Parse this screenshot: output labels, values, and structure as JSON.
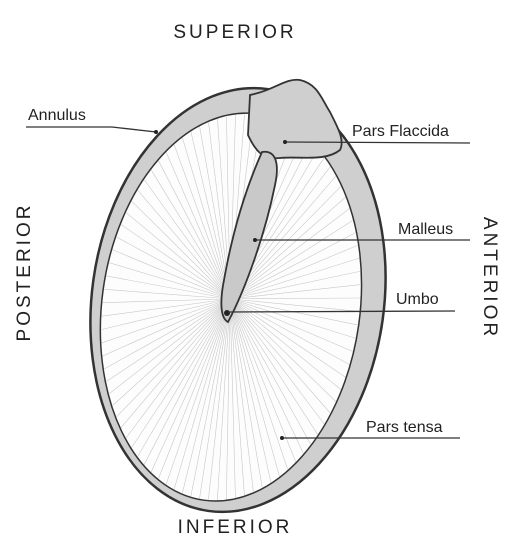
{
  "directions": {
    "superior": "SUPERIOR",
    "inferior": "INFERIOR",
    "posterior": "POSTERIOR",
    "anterior": "ANTERIOR"
  },
  "labels": {
    "annulus": "Annulus",
    "pars_flaccida": "Pars Flaccida",
    "malleus": "Malleus",
    "umbo": "Umbo",
    "pars_tensa": "Pars tensa"
  }
}
